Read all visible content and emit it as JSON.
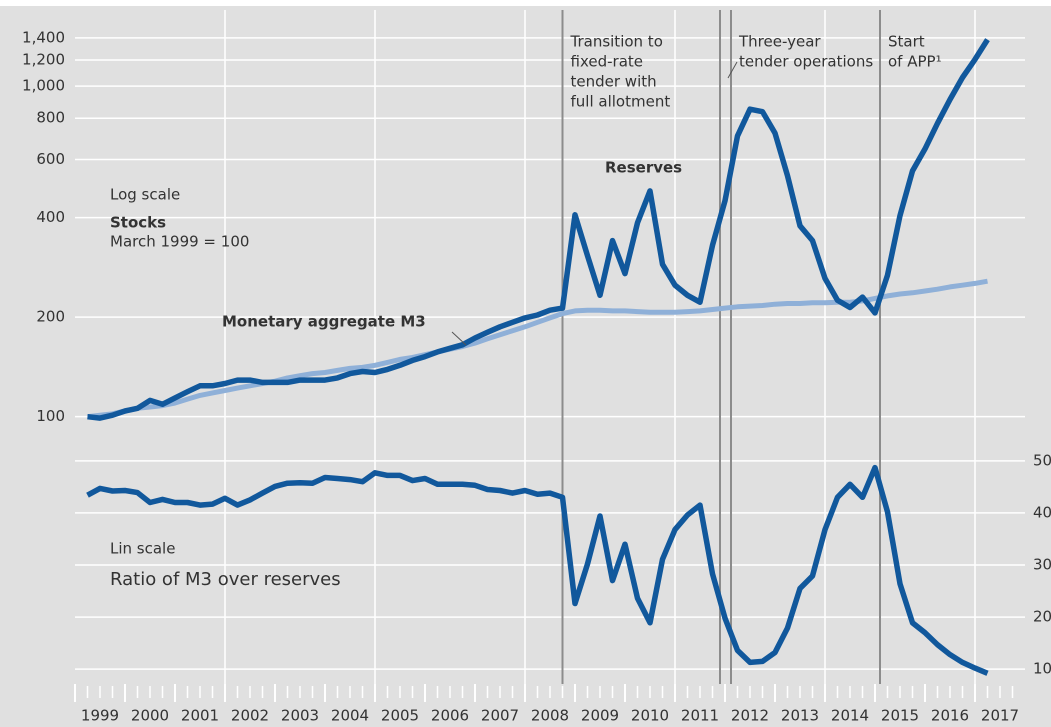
{
  "chart_data": {
    "type": "line",
    "log_scale": "y",
    "x": [
      1999.25,
      1999.5,
      1999.75,
      2000,
      2000.25,
      2000.5,
      2000.75,
      2001,
      2001.25,
      2001.5,
      2001.75,
      2002,
      2002.25,
      2002.5,
      2002.75,
      2003,
      2003.25,
      2003.5,
      2003.75,
      2004,
      2004.25,
      2004.5,
      2004.75,
      2005,
      2005.25,
      2005.5,
      2005.75,
      2006,
      2006.25,
      2006.5,
      2006.75,
      2007,
      2007.25,
      2007.5,
      2007.75,
      2008,
      2008.25,
      2008.5,
      2008.75,
      2009,
      2009.25,
      2009.5,
      2009.75,
      2010,
      2010.25,
      2010.5,
      2010.75,
      2011,
      2011.25,
      2011.5,
      2011.75,
      2012,
      2012.25,
      2012.5,
      2012.75,
      2013,
      2013.25,
      2013.5,
      2013.75,
      2014,
      2014.25,
      2014.5,
      2014.75,
      2015,
      2015.25,
      2015.5,
      2015.75,
      2016,
      2016.25,
      2016.5,
      2016.75,
      2017,
      2017.25
    ],
    "xlim": [
      1999,
      2018
    ],
    "xticks": [
      1999,
      2000,
      2001,
      2002,
      2003,
      2004,
      2005,
      2006,
      2007,
      2008,
      2009,
      2010,
      2011,
      2012,
      2013,
      2014,
      2015,
      2016,
      2017
    ],
    "xgrid": [
      2002,
      2005,
      2008,
      2011,
      2014,
      2017
    ],
    "ylim": [
      85,
      1700
    ],
    "yticks": [
      100,
      200,
      400,
      600,
      800,
      {
        "value": 1000,
        "label": "1,000"
      },
      {
        "value": 1200,
        "label": "1,200"
      },
      {
        "value": 1400,
        "label": "1,400"
      }
    ],
    "y2lim": [
      6,
      54
    ],
    "y2ticks": [
      10,
      20,
      30,
      40,
      50
    ],
    "grid": true,
    "top_labels": [
      "Log scale",
      "Stocks",
      "March 1999 = 100"
    ],
    "bottom_label": "Lin scale",
    "series": [
      {
        "name": "Reserves",
        "color": "#11589c",
        "values": [
          100,
          99,
          101,
          104,
          106,
          112,
          109,
          114,
          119,
          124,
          124,
          126,
          129,
          129,
          127,
          127,
          127,
          129,
          129,
          129,
          131,
          135,
          137,
          136,
          139,
          143,
          148,
          152,
          157,
          161,
          165,
          173,
          180,
          187,
          193,
          199,
          203,
          210,
          213,
          408,
          307,
          233,
          341,
          271,
          386,
          482,
          289,
          250,
          233,
          222,
          330,
          450,
          707,
          852,
          837,
          721,
          536,
          378,
          341,
          262,
          225,
          214,
          230,
          206,
          268,
          406,
          554,
          646,
          772,
          911,
          1062,
          1205,
          1383
        ]
      },
      {
        "name": "Monetary aggregate M3",
        "color": "#8fb0d8",
        "values": [
          100,
          101,
          102,
          104,
          106,
          107,
          108,
          110,
          113,
          116,
          118,
          120,
          122,
          124,
          126,
          128,
          131,
          133,
          135,
          136,
          138,
          140,
          141,
          143,
          146,
          149,
          151,
          154,
          157,
          160,
          163,
          167,
          172,
          177,
          182,
          187,
          193,
          199,
          205,
          209,
          210,
          210,
          209,
          209,
          208,
          207,
          207,
          207,
          208,
          209,
          211,
          213,
          215,
          216,
          217,
          219,
          220,
          220,
          221,
          221,
          222,
          222,
          224,
          228,
          232,
          235,
          237,
          240,
          243,
          247,
          250,
          253,
          257
        ]
      },
      {
        "name": "Ratio of M3 over reserves",
        "color": "#11589c",
        "axis": "y2",
        "values": [
          43.4,
          44.7,
          44.2,
          44.3,
          43.9,
          42,
          42.6,
          42,
          42,
          41.5,
          41.7,
          42.8,
          41.5,
          42.5,
          43.8,
          45.1,
          45.7,
          45.8,
          45.7,
          46.8,
          46.6,
          46.4,
          46,
          47.7,
          47.2,
          47.2,
          46.2,
          46.6,
          45.5,
          45.5,
          45.5,
          45.3,
          44.5,
          44.3,
          43.8,
          44.3,
          43.6,
          43.8,
          43,
          22.6,
          30.2,
          39.4,
          27,
          34,
          23.6,
          18.9,
          31.1,
          36.8,
          39.6,
          41.5,
          28.3,
          19.8,
          13.6,
          11.3,
          11.5,
          13.2,
          17.9,
          25.5,
          27.9,
          36.8,
          43,
          45.5,
          43,
          48.7,
          40.2,
          26.4,
          18.9,
          17,
          14.7,
          12.8,
          11.3,
          10.2,
          9.2
        ]
      }
    ],
    "events": [
      {
        "x": [
          2008.75
        ],
        "label": [
          "Transition to",
          "fixed-rate",
          "tender with",
          "full allotment"
        ]
      },
      {
        "x": [
          2011.9,
          2012.12
        ],
        "label": [
          "Three-year",
          "tender operations"
        ]
      },
      {
        "x": [
          2015.1
        ],
        "label": [
          "Start",
          "of APP¹"
        ]
      }
    ]
  }
}
